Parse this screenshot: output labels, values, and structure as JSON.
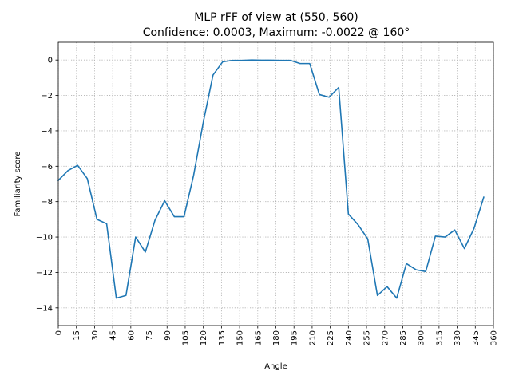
{
  "chart_data": {
    "type": "line",
    "title": "MLP rFF of view at (550, 560)",
    "subtitle": "Confidence: 0.0003, Maximum: -0.0022 @ 160°",
    "xlabel": "Angle",
    "ylabel": "Familiarity score",
    "xlim": [
      0,
      360
    ],
    "ylim": [
      -15,
      1
    ],
    "xticks": [
      0,
      15,
      30,
      45,
      60,
      75,
      90,
      105,
      120,
      135,
      150,
      165,
      180,
      195,
      210,
      225,
      240,
      255,
      270,
      285,
      300,
      315,
      330,
      345,
      360
    ],
    "yticks": [
      0,
      -2,
      -4,
      -6,
      -8,
      -10,
      -12,
      -14
    ],
    "grid": true,
    "color": "#1f77b4",
    "x": [
      0,
      8,
      16,
      24,
      32,
      40,
      48,
      56,
      64,
      72,
      80,
      88,
      96,
      104,
      112,
      120,
      128,
      136,
      144,
      152,
      160,
      168,
      176,
      184,
      192,
      200,
      208,
      216,
      224,
      232,
      240,
      248,
      256,
      264,
      272,
      280,
      288,
      296,
      304,
      312,
      320,
      328,
      336,
      344,
      352
    ],
    "y": [
      -6.8,
      -6.25,
      -5.95,
      -6.7,
      -9.0,
      -9.25,
      -13.45,
      -13.3,
      -10.0,
      -10.85,
      -9.05,
      -7.95,
      -8.85,
      -8.85,
      -6.5,
      -3.5,
      -0.85,
      -0.1,
      -0.02,
      -0.02,
      -0.002,
      -0.01,
      -0.01,
      -0.02,
      -0.02,
      -0.2,
      -0.2,
      -1.95,
      -2.1,
      -1.55,
      -8.7,
      -9.3,
      -10.1,
      -13.3,
      -12.8,
      -13.45,
      -11.5,
      -11.85,
      -11.95,
      -9.95,
      -10.0,
      -9.6,
      -10.65,
      -9.5,
      -7.75
    ]
  }
}
